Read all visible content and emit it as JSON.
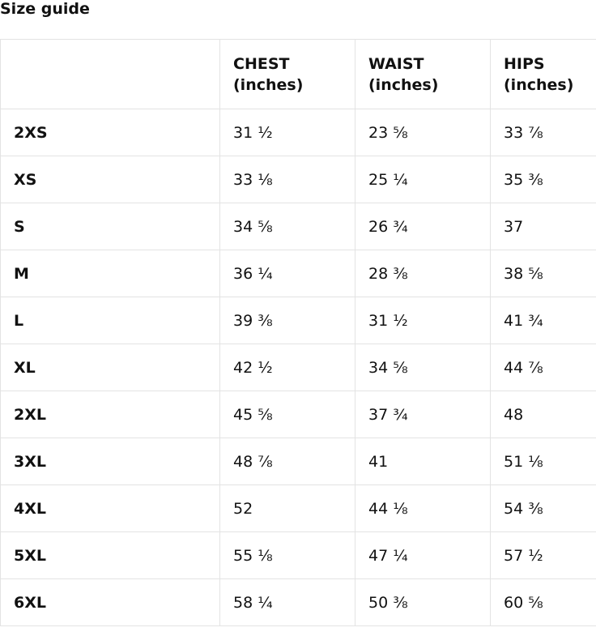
{
  "title": "Size guide",
  "table": {
    "headers": [
      "CHEST\n(inches)",
      "WAIST\n(inches)",
      "HIPS\n(inches)"
    ],
    "rows": [
      {
        "label": "2XS",
        "cells": [
          "31 ½",
          "23 ⅝",
          "33 ⅞"
        ]
      },
      {
        "label": "XS",
        "cells": [
          "33 ⅛",
          "25 ¼",
          "35 ⅜"
        ]
      },
      {
        "label": "S",
        "cells": [
          "34 ⅝",
          "26 ¾",
          "37"
        ]
      },
      {
        "label": "M",
        "cells": [
          "36 ¼",
          "28 ⅜",
          "38 ⅝"
        ]
      },
      {
        "label": "L",
        "cells": [
          "39 ⅜",
          "31 ½",
          "41 ¾"
        ]
      },
      {
        "label": "XL",
        "cells": [
          "42 ½",
          "34 ⅝",
          "44 ⅞"
        ]
      },
      {
        "label": "2XL",
        "cells": [
          "45 ⅝",
          "37 ¾",
          "48"
        ]
      },
      {
        "label": "3XL",
        "cells": [
          "48 ⅞",
          "41",
          "51 ⅛"
        ]
      },
      {
        "label": "4XL",
        "cells": [
          "52",
          "44 ⅛",
          "54 ⅜"
        ]
      },
      {
        "label": "5XL",
        "cells": [
          "55 ⅛",
          "47 ¼",
          "57 ½"
        ]
      },
      {
        "label": "6XL",
        "cells": [
          "58 ¼",
          "50 ⅜",
          "60 ⅝"
        ]
      }
    ]
  }
}
